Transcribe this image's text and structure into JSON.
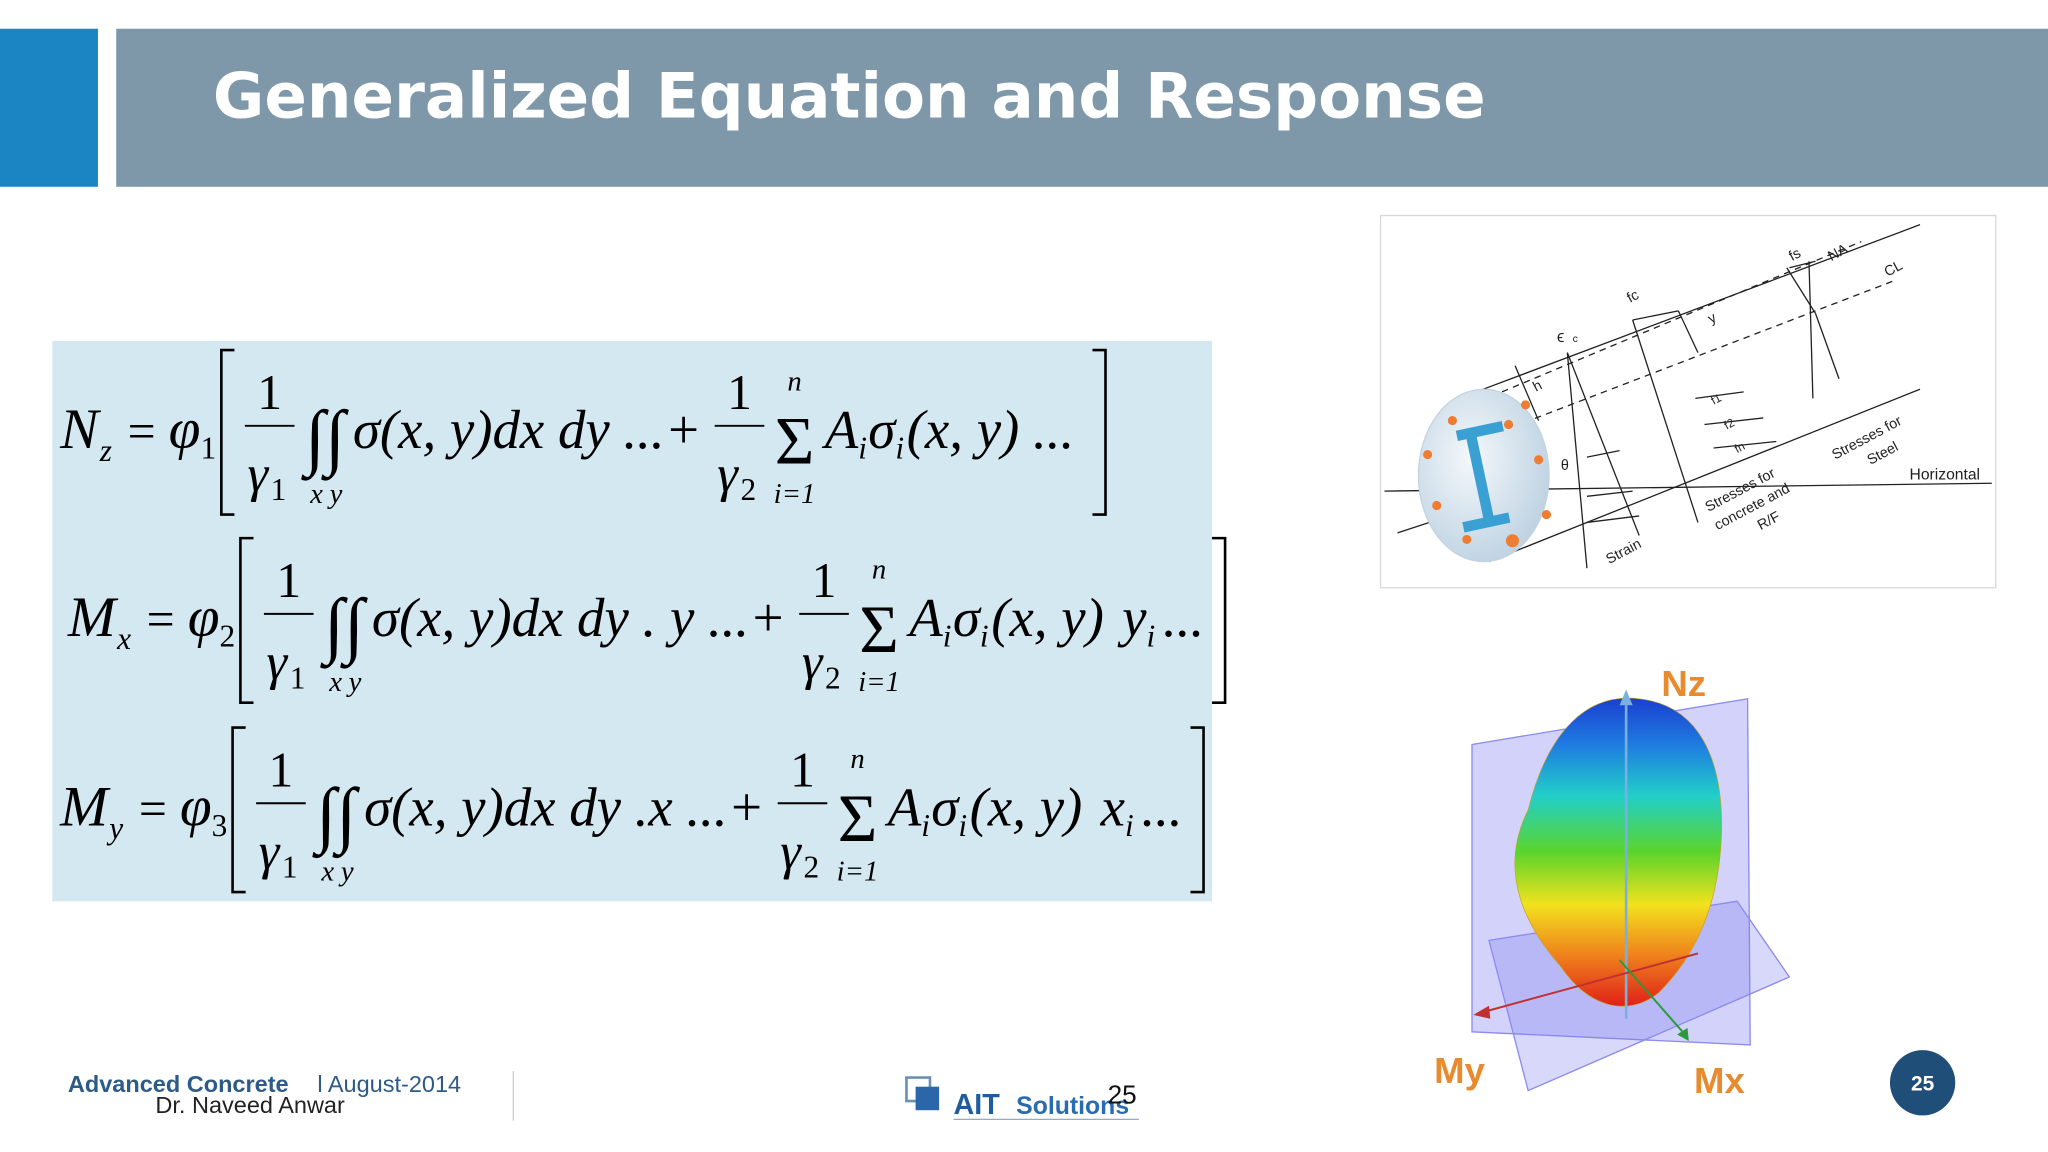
{
  "header": {
    "title": "Generalized Equation and Response"
  },
  "equations": {
    "symbols": {
      "equals": "=",
      "phi": "φ",
      "one": "1",
      "two": "2",
      "gamma": "γ",
      "integral": "∫∫",
      "int_x": "x",
      "int_y": "y",
      "sum": "Σ",
      "sum_top": "n",
      "sum_bottom": "i=1",
      "A": "A",
      "A_sub": "i",
      "sigma": "σ",
      "sigma_sub": "i"
    },
    "rows": [
      {
        "lhs": "N",
        "lhs_sub": "z",
        "phi_sub": "1",
        "integral_body": "σ(x, y)dx dy ...+",
        "sum_body": "(x, y) ..."
      },
      {
        "lhs": "M",
        "lhs_sub": "x",
        "phi_sub": "2",
        "integral_body": "σ(x, y)dx dy . y ...+",
        "sum_body": "(x, y)",
        "tail": "y",
        "tail_sub": "i",
        "tail_end": "..."
      },
      {
        "lhs": "M",
        "lhs_sub": "y",
        "phi_sub": "3",
        "integral_body": "σ(x, y)dx dy .x ...+",
        "sum_body": "(x, y)",
        "tail": "x",
        "tail_sub": "i",
        "tail_end": "..."
      }
    ]
  },
  "diagram": {
    "fs": "fs",
    "na": "NA",
    "cl": "CL",
    "fc": "fc",
    "y": "y",
    "epsilon": "ϵ",
    "epsilon_sub": "c",
    "h": "h",
    "theta": "θ",
    "f1": "f1",
    "f2": "f2",
    "fn": "fn",
    "steel_1": "Stresses for",
    "steel_2": "Steel",
    "horizontal": "Horizontal",
    "concrete_1": "Stresses for",
    "concrete_2": "concrete and",
    "concrete_3": "R/F",
    "strain": "Strain"
  },
  "response_plot": {
    "nz": "Nz",
    "my": "My",
    "mx": "Mx"
  },
  "footer": {
    "course": "Advanced Concrete",
    "date": "l August-2014",
    "author": "Dr. Naveed Anwar",
    "logo_1": "AIT",
    "logo_2": "Solutions",
    "page_number": "25"
  },
  "page_badge": "25"
}
